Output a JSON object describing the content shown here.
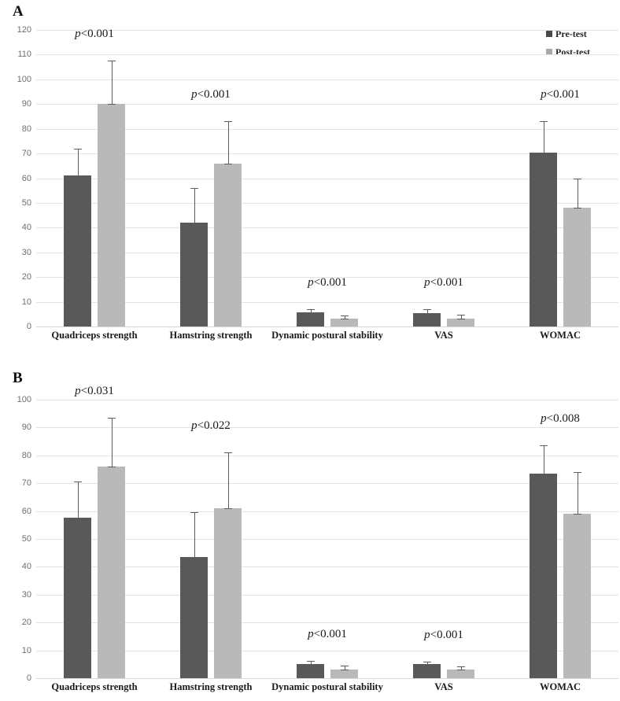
{
  "legend": {
    "items": [
      {
        "label": "Pre-test",
        "color": "#4a4a4a"
      },
      {
        "label": "Post-test",
        "color": "#a9a9a9"
      }
    ]
  },
  "colors": {
    "pre_bar": "#595959",
    "post_bar": "#b9b9b9",
    "gridline": "#e3e3e3",
    "error_bar": "#5c5c5c",
    "bracket": "#555555",
    "tick_text": "#6e6e6e"
  },
  "chart_data": [
    {
      "type": "bar",
      "panel": "A",
      "title": "",
      "xlabel": "",
      "ylabel": "",
      "ylim": [
        0,
        120
      ],
      "ytick_step": 10,
      "grid": true,
      "legend_position": "top-right",
      "categories": [
        "Quadriceps strength",
        "Hamstring strength",
        "Dynamic postural stability",
        "VAS",
        "WOMAC"
      ],
      "series": [
        {
          "name": "Pre-test",
          "color": "#595959",
          "values": [
            61,
            42,
            5.7,
            5.5,
            70.5
          ],
          "errors": [
            11,
            14,
            1.3,
            1.4,
            12.5
          ]
        },
        {
          "name": "Post-test",
          "color": "#b9b9b9",
          "values": [
            90,
            66,
            3.2,
            3.3,
            48
          ],
          "errors": [
            17.5,
            17,
            1.4,
            1.4,
            12
          ]
        }
      ],
      "significance": [
        "p<0.001",
        "p<0.001",
        "p<0.001",
        "p<0.001",
        "p<0.001"
      ]
    },
    {
      "type": "bar",
      "panel": "B",
      "title": "",
      "xlabel": "",
      "ylabel": "",
      "ylim": [
        0,
        100
      ],
      "ytick_step": 10,
      "grid": true,
      "legend_position": "none",
      "categories": [
        "Quadriceps strength",
        "Hamstring strength",
        "Dynamic postural stability",
        "VAS",
        "WOMAC"
      ],
      "series": [
        {
          "name": "Pre-test",
          "color": "#595959",
          "values": [
            57.5,
            43.5,
            5.2,
            5.0,
            73.5
          ],
          "errors": [
            13,
            16,
            1.1,
            1.0,
            10
          ]
        },
        {
          "name": "Post-test",
          "color": "#b9b9b9",
          "values": [
            76,
            61,
            3.1,
            3.1,
            59
          ],
          "errors": [
            17.5,
            20,
            1.3,
            1.2,
            15
          ]
        }
      ],
      "significance": [
        "p<0.031",
        "p<0.022",
        "p<0.001",
        "p<0.001",
        "p<0.008"
      ]
    }
  ]
}
